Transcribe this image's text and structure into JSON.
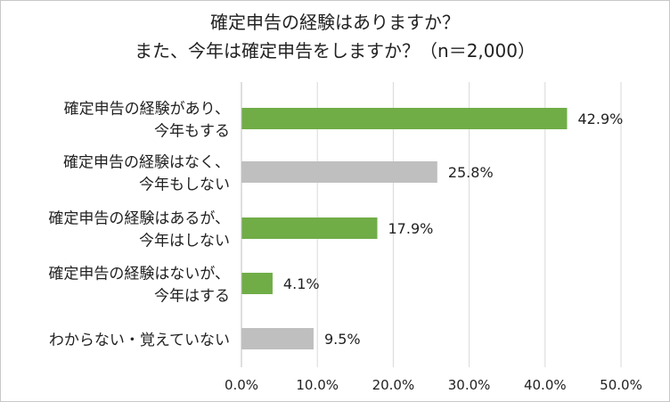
{
  "title_line1": "確定申告の経験はありますか？",
  "title_line2": "また、今年は確定申告をしますか？（n＝2,000）",
  "colors": {
    "green": "#70ad47",
    "gray": "#bfbfbf",
    "grid": "#d9d9d9",
    "text": "#222222"
  },
  "chart_data": {
    "type": "bar",
    "orientation": "horizontal",
    "categories": [
      [
        "確定申告の経験があり、",
        "今年もする"
      ],
      [
        "確定申告の経験はなく、",
        "今年もしない"
      ],
      [
        "確定申告の経験はあるが、",
        "今年はしない"
      ],
      [
        "確定申告の経験はないが、",
        "今年はする"
      ],
      [
        "わからない・覚えていない"
      ]
    ],
    "values": [
      42.9,
      25.8,
      17.9,
      4.1,
      9.5
    ],
    "value_labels": [
      "42.9%",
      "25.8%",
      "17.9%",
      "4.1%",
      "9.5%"
    ],
    "bar_colors": [
      "green",
      "gray",
      "green",
      "green",
      "gray"
    ],
    "xlim": [
      0,
      50
    ],
    "ticks": [
      0,
      10,
      20,
      30,
      40,
      50
    ],
    "tick_labels": [
      "0.0%",
      "10.0%",
      "20.0%",
      "30.0%",
      "40.0%",
      "50.0%"
    ],
    "grid": true
  }
}
